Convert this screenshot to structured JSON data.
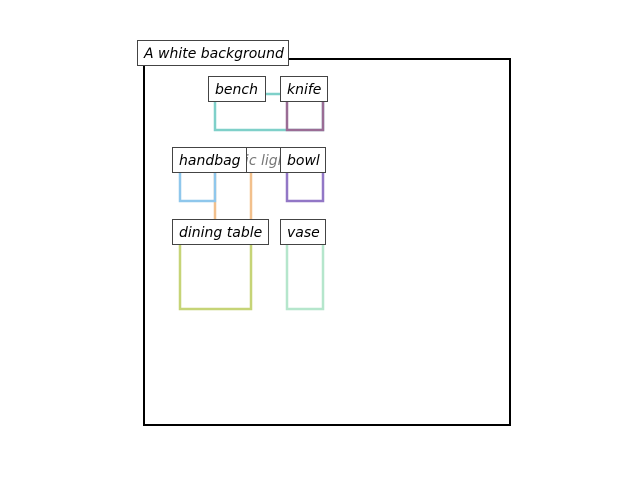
{
  "scene": {
    "title": "A white background",
    "frame_color": "#000000",
    "boxes": [
      {
        "id": "bench",
        "label": "bench",
        "color": "#7fd0c9"
      },
      {
        "id": "knife",
        "label": "knife",
        "color": "#9a6c95"
      },
      {
        "id": "traffic_light",
        "label": "traffic light",
        "color": "#f2c08c"
      },
      {
        "id": "handbag",
        "label": "handbag",
        "color": "#8fc7ec"
      },
      {
        "id": "bowl",
        "label": "bowl",
        "color": "#9277c6"
      },
      {
        "id": "dining_table",
        "label": "dining table",
        "color": "#c6d477"
      },
      {
        "id": "vase",
        "label": "vase",
        "color": "#b5e6cc"
      }
    ]
  }
}
